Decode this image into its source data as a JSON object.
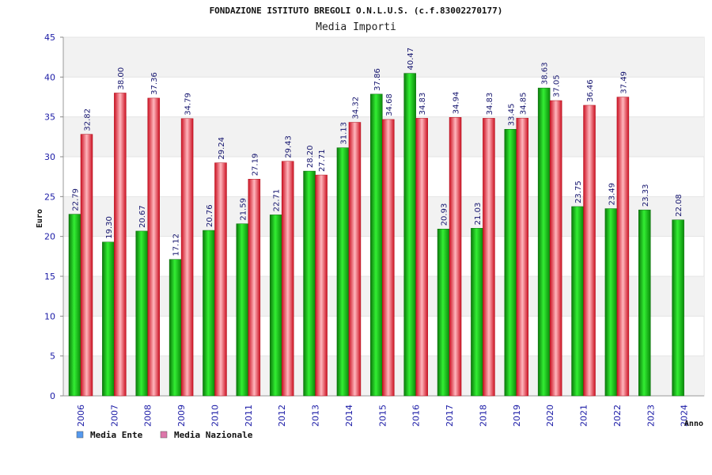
{
  "chart_data": {
    "type": "bar",
    "title": "FONDAZIONE ISTITUTO BREGOLI O.N.L.U.S. (c.f.83002270177)",
    "subtitle": "Media Importi",
    "ylabel": "Euro",
    "xlabel": "Anno",
    "ylim": [
      0,
      45
    ],
    "yticks": [
      0,
      5,
      10,
      15,
      20,
      25,
      30,
      35,
      40,
      45
    ],
    "categories": [
      "2006",
      "2007",
      "2008",
      "2009",
      "2010",
      "2011",
      "2012",
      "2013",
      "2014",
      "2015",
      "2016",
      "2017",
      "2018",
      "2019",
      "2020",
      "2021",
      "2022",
      "2023",
      "2024"
    ],
    "series": [
      {
        "name": "Media Ente",
        "color": "#11bb11",
        "values": [
          22.79,
          19.3,
          20.67,
          17.12,
          20.76,
          21.59,
          22.71,
          28.2,
          31.13,
          37.86,
          40.47,
          20.93,
          21.03,
          33.45,
          38.63,
          23.75,
          23.49,
          23.33,
          22.08
        ],
        "labels": [
          "22.79",
          "19.30",
          "20.67",
          "17.12",
          "20.76",
          "21.59",
          "22.71",
          "28.20",
          "31.13",
          "37.86",
          "40.47",
          "20.93",
          "21.03",
          "33.45",
          "38.63",
          "23.75",
          "23.49",
          "23.33",
          "22.08"
        ]
      },
      {
        "name": "Media Nazionale",
        "color": "#ee2233",
        "values": [
          32.82,
          38.0,
          37.36,
          34.79,
          29.24,
          27.19,
          29.43,
          27.71,
          34.32,
          34.68,
          34.83,
          34.94,
          34.83,
          34.85,
          37.05,
          36.46,
          37.49,
          null,
          null
        ],
        "labels": [
          "32.82",
          "38.00",
          "37.36",
          "34.79",
          "29.24",
          "27.19",
          "29.43",
          "27.71",
          "34.32",
          "34.68",
          "34.83",
          "34.94",
          "34.83",
          "34.85",
          "37.05",
          "36.46",
          "37.49",
          null,
          null
        ]
      }
    ],
    "legend": {
      "placement": "bottom-left",
      "items": [
        {
          "label": "Media Ente",
          "color": "#5599ee"
        },
        {
          "label": "Media Nazionale",
          "color": "#dd77aa"
        }
      ]
    },
    "grid": true
  }
}
